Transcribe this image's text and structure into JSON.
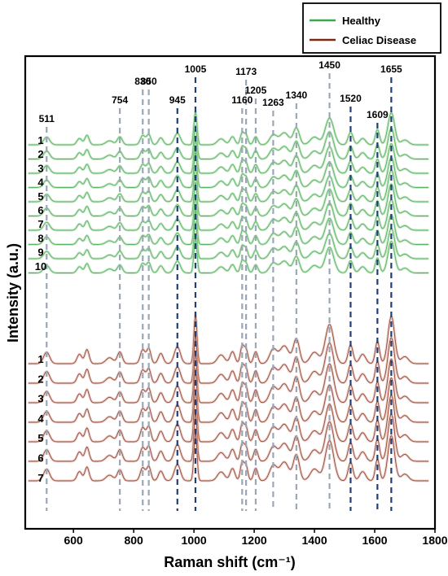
{
  "chart_data": {
    "type": "line",
    "xlabel": "Raman shift (cm⁻¹)",
    "ylabel": "Intensity (a.u.)",
    "xlim": [
      440,
      1800
    ],
    "xticks": [
      600,
      800,
      1000,
      1200,
      1400,
      1600,
      1800
    ],
    "yticks": [],
    "grid": false,
    "legend": {
      "position": "top-right",
      "entries": [
        {
          "label": "Healthy",
          "color": "#3aa84a"
        },
        {
          "label": "Celiac Disease",
          "color": "#7a2a0e"
        }
      ]
    },
    "groups": [
      {
        "name": "Healthy",
        "color": "#3aa84a",
        "spectra_labels": [
          "1",
          "2",
          "3",
          "4",
          "5",
          "6",
          "7",
          "8",
          "9",
          "10"
        ]
      },
      {
        "name": "Celiac Disease",
        "color": "#7a2a0e",
        "spectra_labels": [
          "1",
          "2",
          "3",
          "4",
          "5",
          "6",
          "7"
        ]
      }
    ],
    "peaks": [
      {
        "label": "511",
        "x": 511,
        "style": "gray"
      },
      {
        "label": "754",
        "x": 754,
        "style": "gray"
      },
      {
        "label": "830",
        "x": 830,
        "style": "gray"
      },
      {
        "label": "850",
        "x": 850,
        "style": "gray"
      },
      {
        "label": "945",
        "x": 945,
        "style": "navy"
      },
      {
        "label": "1005",
        "x": 1005,
        "style": "navy"
      },
      {
        "label": "1160",
        "x": 1160,
        "style": "gray"
      },
      {
        "label": "1173",
        "x": 1173,
        "style": "gray"
      },
      {
        "label": "1205",
        "x": 1205,
        "style": "gray"
      },
      {
        "label": "1263",
        "x": 1263,
        "style": "gray"
      },
      {
        "label": "1340",
        "x": 1340,
        "style": "gray"
      },
      {
        "label": "1450",
        "x": 1450,
        "style": "gray"
      },
      {
        "label": "1520",
        "x": 1520,
        "style": "navy"
      },
      {
        "label": "1609",
        "x": 1609,
        "style": "navy"
      },
      {
        "label": "1655",
        "x": 1655,
        "style": "navy"
      }
    ]
  }
}
